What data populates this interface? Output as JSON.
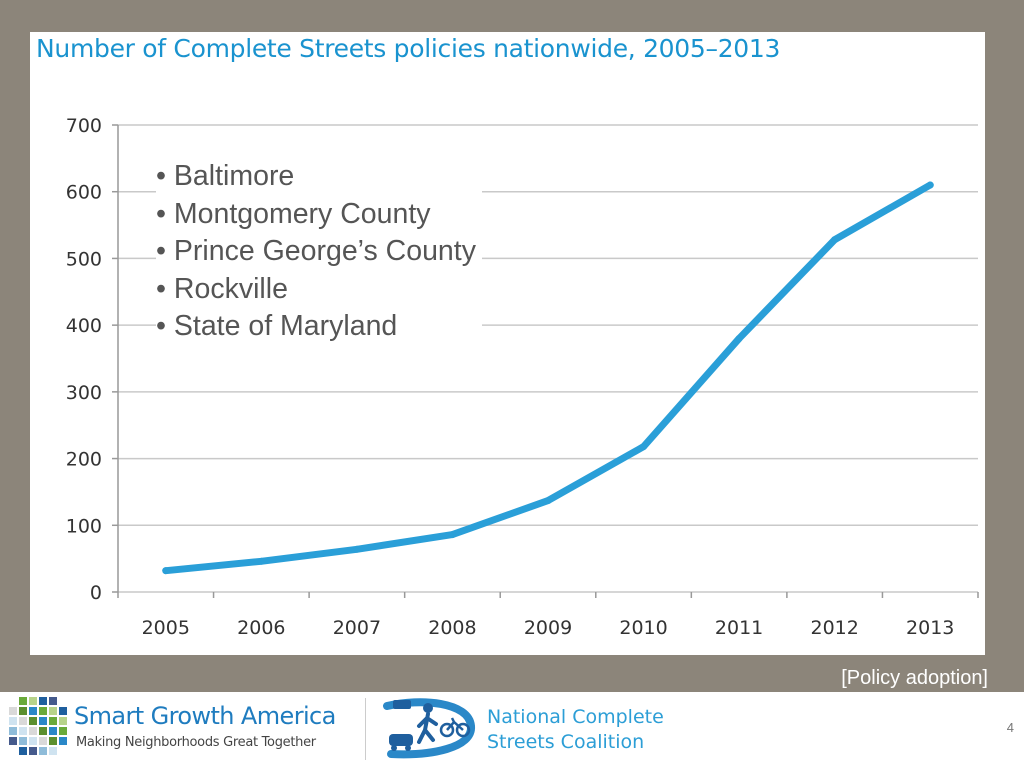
{
  "chart_data": {
    "type": "line",
    "title": "Number of Complete Streets policies nationwide, 2005–2013",
    "xlabel": "",
    "ylabel": "",
    "categories": [
      "2005",
      "2006",
      "2007",
      "2008",
      "2009",
      "2010",
      "2011",
      "2012",
      "2013"
    ],
    "series": [
      {
        "values": [
          32,
          46,
          64,
          86,
          137,
          218,
          380,
          528,
          610
        ]
      }
    ],
    "y_ticks": [
      "0",
      "100",
      "200",
      "300",
      "400",
      "500",
      "600",
      "700"
    ],
    "ylim": [
      0,
      700
    ],
    "grid": true,
    "line_color": "#2a9fd8"
  },
  "overlay_list": [
    "Baltimore",
    "Montgomery County",
    "Prince George’s County",
    "Rockville",
    "State of Maryland"
  ],
  "note": "[Policy adoption]",
  "footer": {
    "sga_name": "Smart Growth America",
    "sga_tagline": "Making Neighborhoods Great Together",
    "ncsc_line1": "National Complete",
    "ncsc_line2": "Streets Coalition",
    "page_number": "4"
  },
  "colors": {
    "accent": "#1a93cf",
    "background": "#8c857a"
  }
}
